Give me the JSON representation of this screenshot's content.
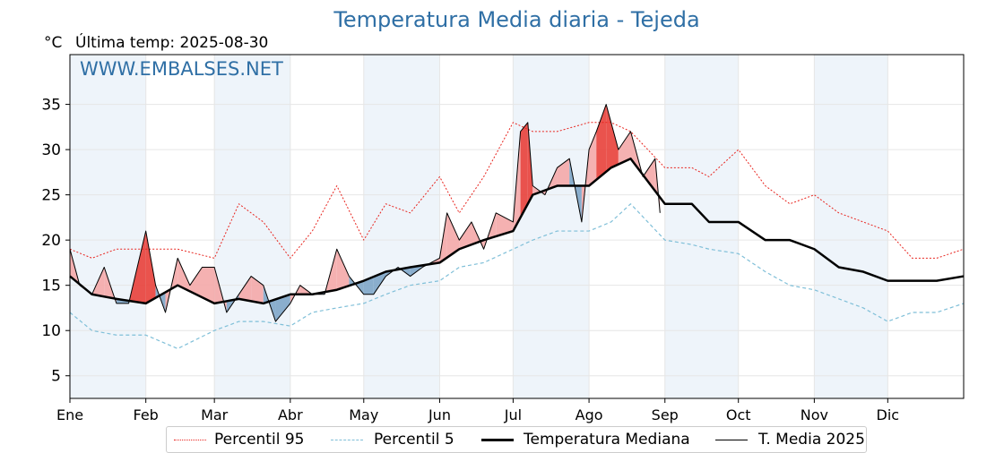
{
  "header": {
    "title": "Temperatura Media diaria - Tejeda",
    "unit": "°C",
    "last_temp": "Última temp: 2025-08-30",
    "watermark": "WWW.EMBALSES.NET"
  },
  "colors": {
    "title": "#2f6fa5",
    "p95": "#e8251f",
    "p5": "#7fbfd8",
    "median": "#000000",
    "media2025": "#000000",
    "above_fill": "#f4a9a8",
    "below_fill": "#7ea6c8",
    "above_extreme": "#e8403a",
    "below_extreme": "#1f5a96",
    "band": "#eef4fa"
  },
  "legend": {
    "p95": "Percentil 95",
    "p5": "Percentil 5",
    "median": "Temperatura Mediana",
    "media2025": "T. Media 2025"
  },
  "chart_data": {
    "type": "line",
    "title": "Temperatura Media diaria - Tejeda",
    "ylabel": "°C",
    "ylim": [
      2.5,
      40.5
    ],
    "yticks": [
      5,
      10,
      15,
      20,
      25,
      30,
      35
    ],
    "xlim": [
      1,
      366
    ],
    "month_ticks": [
      {
        "label": "Ene",
        "day": 1
      },
      {
        "label": "Feb",
        "day": 32
      },
      {
        "label": "Mar",
        "day": 60
      },
      {
        "label": "Abr",
        "day": 91
      },
      {
        "label": "May",
        "day": 121
      },
      {
        "label": "Jun",
        "day": 152
      },
      {
        "label": "Jul",
        "day": 182
      },
      {
        "label": "Ago",
        "day": 213
      },
      {
        "label": "Sep",
        "day": 244
      },
      {
        "label": "Oct",
        "day": 274
      },
      {
        "label": "Nov",
        "day": 305
      },
      {
        "label": "Dic",
        "day": 335
      }
    ],
    "grid": true,
    "legend_position": "bottom",
    "series": [
      {
        "name": "Percentil 95",
        "style": "dotted-red",
        "x": [
          1,
          10,
          20,
          32,
          45,
          60,
          70,
          80,
          91,
          100,
          110,
          121,
          130,
          140,
          152,
          160,
          170,
          182,
          190,
          200,
          213,
          222,
          230,
          244,
          255,
          262,
          274,
          285,
          295,
          305,
          315,
          325,
          335,
          345,
          355,
          366
        ],
        "y": [
          19,
          18,
          19,
          19,
          19,
          18,
          24,
          22,
          18,
          21,
          26,
          20,
          24,
          23,
          27,
          23,
          27,
          33,
          32,
          32,
          33,
          33,
          32,
          28,
          28,
          27,
          30,
          26,
          24,
          25,
          23,
          22,
          21,
          18,
          18,
          19
        ]
      },
      {
        "name": "Percentil 5",
        "style": "dashed-lightblue",
        "x": [
          1,
          10,
          20,
          32,
          45,
          60,
          70,
          80,
          91,
          100,
          110,
          121,
          130,
          140,
          152,
          160,
          170,
          182,
          190,
          200,
          213,
          222,
          230,
          244,
          255,
          262,
          274,
          285,
          295,
          305,
          315,
          325,
          335,
          345,
          355,
          366
        ],
        "y": [
          12,
          10,
          9.5,
          9.5,
          8,
          10,
          11,
          11,
          10.5,
          12,
          12.5,
          13,
          14,
          15,
          15.5,
          17,
          17.5,
          19,
          20,
          21,
          21,
          22,
          24,
          20,
          19.5,
          19,
          18.5,
          16.5,
          15,
          14.5,
          13.5,
          12.5,
          11,
          12,
          12,
          13
        ]
      },
      {
        "name": "Temperatura Mediana",
        "style": "thick-black",
        "x": [
          1,
          10,
          20,
          32,
          45,
          60,
          70,
          80,
          91,
          100,
          110,
          121,
          130,
          140,
          152,
          160,
          170,
          182,
          190,
          200,
          213,
          222,
          230,
          244,
          255,
          262,
          274,
          285,
          295,
          305,
          315,
          325,
          335,
          345,
          355,
          366
        ],
        "y": [
          16,
          14,
          13.5,
          13,
          15,
          13,
          13.5,
          13,
          14,
          14,
          14.5,
          15.5,
          16.5,
          17,
          17.5,
          19,
          20,
          21,
          25,
          26,
          26,
          28,
          29,
          24,
          24,
          22,
          22,
          20,
          20,
          19,
          17,
          16.5,
          15.5,
          15.5,
          15.5,
          16
        ]
      },
      {
        "name": "T. Media 2025",
        "style": "thin-black",
        "x": [
          1,
          5,
          10,
          15,
          20,
          25,
          32,
          36,
          40,
          45,
          50,
          55,
          60,
          65,
          70,
          75,
          80,
          85,
          91,
          95,
          100,
          105,
          110,
          115,
          121,
          125,
          130,
          135,
          140,
          145,
          152,
          155,
          160,
          165,
          170,
          175,
          182,
          185,
          188,
          190,
          195,
          200,
          205,
          210,
          213,
          216,
          220,
          225,
          230,
          235,
          240,
          242
        ],
        "y": [
          19,
          15,
          14,
          17,
          13,
          13,
          21,
          15,
          12,
          18,
          15,
          17,
          17,
          12,
          14,
          16,
          15,
          11,
          13,
          15,
          14,
          14,
          19,
          16,
          14,
          14,
          16,
          17,
          16,
          17,
          18,
          23,
          20,
          22,
          19,
          23,
          22,
          32,
          33,
          26,
          25,
          28,
          29,
          22,
          30,
          32,
          35,
          30,
          32,
          27,
          29,
          23
        ]
      }
    ]
  }
}
